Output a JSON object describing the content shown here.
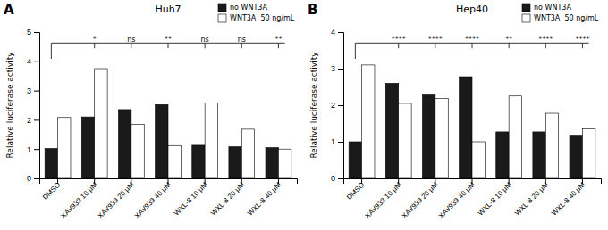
{
  "chart_data": [
    {
      "type": "bar",
      "title": "Huh7",
      "label": "A",
      "categories": [
        "DMSO",
        "XAV939 10 μM",
        "XAV939 20 μM",
        "XAV939 40 μM",
        "WXL-8 10 μM",
        "WXL-8 20 μM",
        "WXL-8 40 μM"
      ],
      "series": [
        {
          "name": "no WNT3A",
          "color": "#1a1a1a",
          "values": [
            1.02,
            2.1,
            2.35,
            2.52,
            1.13,
            1.08,
            1.05
          ]
        },
        {
          "name": "WNT3A  50 ng/mL",
          "color": "#ffffff",
          "values": [
            2.08,
            3.75,
            1.85,
            1.12,
            2.58,
            1.68,
            1.0
          ]
        }
      ],
      "ylabel": "Relative luciferase activity",
      "ylim": [
        0,
        5
      ],
      "yticks": [
        0,
        1,
        2,
        3,
        4,
        5
      ],
      "annotations": [
        "*",
        "ns",
        "**",
        "ns",
        "ns",
        "**"
      ],
      "legend": "upper right",
      "grid": false
    },
    {
      "type": "bar",
      "title": "Hep40",
      "label": "B",
      "categories": [
        "DMSO",
        "XAV939 10 μM",
        "XAV939 20 μM",
        "XAV939 40 μM",
        "WXL-8 10 μM",
        "WXL-8 20 μM",
        "WXL-8 40 μM"
      ],
      "series": [
        {
          "name": "no WNT3A",
          "color": "#1a1a1a",
          "values": [
            1.0,
            2.6,
            2.28,
            2.78,
            1.27,
            1.27,
            1.18
          ]
        },
        {
          "name": "WNT3A  50 ng/mL",
          "color": "#ffffff",
          "values": [
            3.1,
            2.05,
            2.18,
            1.0,
            2.25,
            1.78,
            1.35
          ]
        }
      ],
      "ylabel": "Relative luciferase activity",
      "ylim": [
        0,
        4
      ],
      "yticks": [
        0,
        1,
        2,
        3,
        4
      ],
      "annotations": [
        "****",
        "****",
        "****",
        "**",
        "****",
        "****"
      ],
      "legend": "upper right",
      "grid": false
    }
  ]
}
